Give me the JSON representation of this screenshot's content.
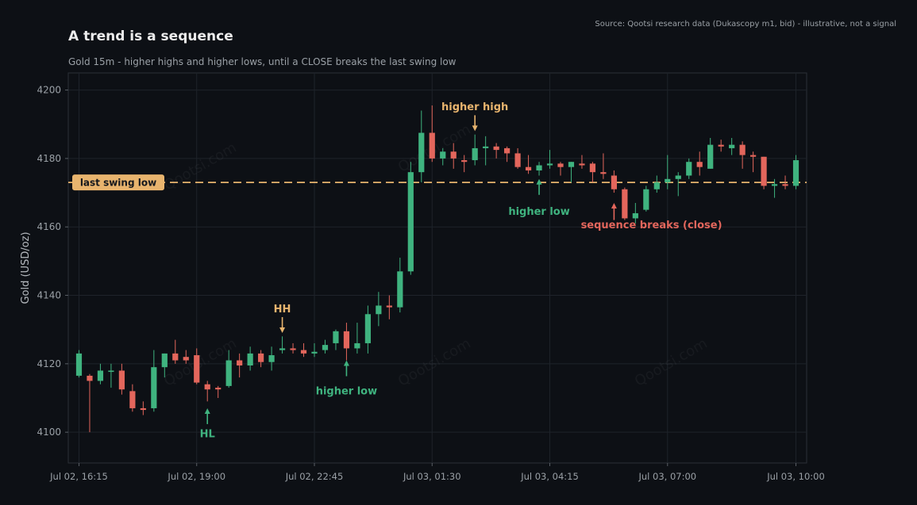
{
  "chart_data": {
    "type": "candlestick",
    "title": "A trend is a sequence",
    "subtitle": "Gold 15m - higher highs and higher lows, until a CLOSE breaks the last swing low",
    "source": "Source: Qootsi research data (Dukascopy m1, bid) - illustrative, not a signal",
    "ylabel": "Gold (USD/oz)",
    "ylim": [
      4091,
      4205
    ],
    "yticks": [
      4100,
      4120,
      4140,
      4160,
      4180,
      4200
    ],
    "x_tick_labels": [
      "Jul 02, 16:15",
      "Jul 02, 19:00",
      "Jul 02, 22:45",
      "Jul 03, 01:30",
      "Jul 03, 04:15",
      "Jul 03, 07:00",
      "Jul 03, 10:00"
    ],
    "x_tick_index": [
      0,
      11,
      22,
      33,
      44,
      55,
      67
    ],
    "x_range": [
      -1,
      68
    ],
    "grid": true,
    "watermark": "Qootsi.com",
    "colors": {
      "background": "#0d1015",
      "up": "#3fb37f",
      "down": "#e3665c",
      "swing_line": "#e8b46e",
      "label_gold": "#e8b46e",
      "label_green": "#3fb37f",
      "label_red": "#e3665c",
      "text": "#e8e8e8",
      "muted": "#9aa0a6",
      "grid": "#1e232a",
      "frame": "#2a2f36"
    },
    "swing_low": {
      "value": 4173,
      "label": "last swing low"
    },
    "candles": [
      {
        "o": 4116.5,
        "h": 4124,
        "l": 4116,
        "c": 4123
      },
      {
        "o": 4116.5,
        "h": 4117,
        "l": 4100,
        "c": 4115
      },
      {
        "o": 4115,
        "h": 4120,
        "l": 4114,
        "c": 4118
      },
      {
        "o": 4118,
        "h": 4120,
        "l": 4113,
        "c": 4118
      },
      {
        "o": 4118,
        "h": 4120,
        "l": 4111,
        "c": 4112.5
      },
      {
        "o": 4112,
        "h": 4114,
        "l": 4106,
        "c": 4107
      },
      {
        "o": 4107,
        "h": 4109,
        "l": 4105,
        "c": 4106.5
      },
      {
        "o": 4107,
        "h": 4124,
        "l": 4106,
        "c": 4119
      },
      {
        "o": 4119,
        "h": 4123,
        "l": 4116,
        "c": 4123
      },
      {
        "o": 4123,
        "h": 4127,
        "l": 4120,
        "c": 4121
      },
      {
        "o": 4122,
        "h": 4124,
        "l": 4120,
        "c": 4121
      },
      {
        "o": 4122.5,
        "h": 4124.5,
        "l": 4114,
        "c": 4114.5
      },
      {
        "o": 4114,
        "h": 4115,
        "l": 4109,
        "c": 4112.5
      },
      {
        "o": 4113,
        "h": 4113.5,
        "l": 4110,
        "c": 4112.5
      },
      {
        "o": 4113.5,
        "h": 4124,
        "l": 4113,
        "c": 4121
      },
      {
        "o": 4121,
        "h": 4123,
        "l": 4116,
        "c": 4119.5
      },
      {
        "o": 4119.5,
        "h": 4125,
        "l": 4118,
        "c": 4123
      },
      {
        "o": 4123,
        "h": 4124,
        "l": 4119,
        "c": 4120.5
      },
      {
        "o": 4120.5,
        "h": 4125,
        "l": 4118,
        "c": 4122.5
      },
      {
        "o": 4124,
        "h": 4128,
        "l": 4123,
        "c": 4124.5
      },
      {
        "o": 4124.5,
        "h": 4126,
        "l": 4123,
        "c": 4124
      },
      {
        "o": 4124,
        "h": 4126,
        "l": 4122,
        "c": 4123
      },
      {
        "o": 4123,
        "h": 4126,
        "l": 4122,
        "c": 4123.5
      },
      {
        "o": 4124,
        "h": 4127,
        "l": 4123,
        "c": 4125.5
      },
      {
        "o": 4126,
        "h": 4130,
        "l": 4124,
        "c": 4129.5
      },
      {
        "o": 4129.5,
        "h": 4132,
        "l": 4121,
        "c": 4124.5
      },
      {
        "o": 4124.5,
        "h": 4132,
        "l": 4123,
        "c": 4126
      },
      {
        "o": 4126,
        "h": 4137,
        "l": 4123,
        "c": 4134.5
      },
      {
        "o": 4134.5,
        "h": 4141,
        "l": 4131,
        "c": 4137
      },
      {
        "o": 4137,
        "h": 4140,
        "l": 4133,
        "c": 4136.5
      },
      {
        "o": 4136.5,
        "h": 4151,
        "l": 4135,
        "c": 4147
      },
      {
        "o": 4147,
        "h": 4179,
        "l": 4146,
        "c": 4176
      },
      {
        "o": 4176,
        "h": 4194,
        "l": 4173,
        "c": 4187.5
      },
      {
        "o": 4187.5,
        "h": 4195.5,
        "l": 4179,
        "c": 4180
      },
      {
        "o": 4180,
        "h": 4183,
        "l": 4178,
        "c": 4182
      },
      {
        "o": 4182,
        "h": 4184.5,
        "l": 4177,
        "c": 4180
      },
      {
        "o": 4179.5,
        "h": 4181,
        "l": 4176,
        "c": 4179
      },
      {
        "o": 4179.5,
        "h": 4187,
        "l": 4178,
        "c": 4183
      },
      {
        "o": 4183,
        "h": 4186.5,
        "l": 4178,
        "c": 4183.5
      },
      {
        "o": 4183.5,
        "h": 4184.5,
        "l": 4180,
        "c": 4182.5
      },
      {
        "o": 4183,
        "h": 4183.5,
        "l": 4179,
        "c": 4181.5
      },
      {
        "o": 4181.5,
        "h": 4183,
        "l": 4177,
        "c": 4177.5
      },
      {
        "o": 4177.5,
        "h": 4181,
        "l": 4175.5,
        "c": 4176.5
      },
      {
        "o": 4176.5,
        "h": 4179,
        "l": 4175,
        "c": 4178
      },
      {
        "o": 4178,
        "h": 4182.5,
        "l": 4177,
        "c": 4178.5
      },
      {
        "o": 4178.5,
        "h": 4179,
        "l": 4175,
        "c": 4177.5
      },
      {
        "o": 4177.5,
        "h": 4179,
        "l": 4173,
        "c": 4179
      },
      {
        "o": 4178.5,
        "h": 4181,
        "l": 4177,
        "c": 4178
      },
      {
        "o": 4178.5,
        "h": 4179,
        "l": 4173,
        "c": 4176
      },
      {
        "o": 4176,
        "h": 4181.5,
        "l": 4174,
        "c": 4175.5
      },
      {
        "o": 4175,
        "h": 4176.5,
        "l": 4170,
        "c": 4171
      },
      {
        "o": 4171,
        "h": 4171.5,
        "l": 4162,
        "c": 4162.5
      },
      {
        "o": 4162.5,
        "h": 4167,
        "l": 4161,
        "c": 4164
      },
      {
        "o": 4165,
        "h": 4172,
        "l": 4164.5,
        "c": 4171
      },
      {
        "o": 4171,
        "h": 4175,
        "l": 4170,
        "c": 4173
      },
      {
        "o": 4173,
        "h": 4181,
        "l": 4171,
        "c": 4174
      },
      {
        "o": 4174,
        "h": 4176,
        "l": 4169,
        "c": 4175
      },
      {
        "o": 4175,
        "h": 4180,
        "l": 4174,
        "c": 4179
      },
      {
        "o": 4179,
        "h": 4182,
        "l": 4175,
        "c": 4177.5
      },
      {
        "o": 4177,
        "h": 4186,
        "l": 4177,
        "c": 4184
      },
      {
        "o": 4184,
        "h": 4185.5,
        "l": 4182,
        "c": 4183.5
      },
      {
        "o": 4183,
        "h": 4186,
        "l": 4181,
        "c": 4184
      },
      {
        "o": 4184,
        "h": 4185,
        "l": 4177,
        "c": 4181
      },
      {
        "o": 4181,
        "h": 4182,
        "l": 4176,
        "c": 4180.5
      },
      {
        "o": 4180.5,
        "h": 4180.5,
        "l": 4171,
        "c": 4172
      },
      {
        "o": 4172,
        "h": 4174,
        "l": 4168.5,
        "c": 4172.5
      },
      {
        "o": 4172.5,
        "h": 4175,
        "l": 4171,
        "c": 4172
      },
      {
        "o": 4172,
        "h": 4181,
        "l": 4171,
        "c": 4179.5
      }
    ],
    "annotations": [
      {
        "text": "HL",
        "color": "label_green",
        "at_index": 12,
        "at_value": 4107,
        "direction": "up",
        "label_value": 4099.5
      },
      {
        "text": "HH",
        "color": "label_gold",
        "at_index": 19,
        "at_value": 4129,
        "direction": "down",
        "label_value": 4136
      },
      {
        "text": "higher low",
        "color": "label_green",
        "at_index": 25,
        "at_value": 4121,
        "direction": "up",
        "label_value": 4112
      },
      {
        "text": "higher high",
        "color": "label_gold",
        "at_index": 37,
        "at_value": 4188,
        "direction": "down",
        "label_value": 4195
      },
      {
        "text": "higher low",
        "color": "label_green",
        "at_index": 43,
        "at_value": 4174,
        "direction": "up",
        "label_value": 4164.5,
        "label_offset_index": 0
      },
      {
        "text": "sequence breaks (close)",
        "color": "label_red",
        "at_index": 50,
        "at_value": 4167,
        "direction": "up",
        "label_value": 4160.5,
        "label_offset_index": 3.5,
        "arrow_from_value": 4162
      }
    ]
  }
}
